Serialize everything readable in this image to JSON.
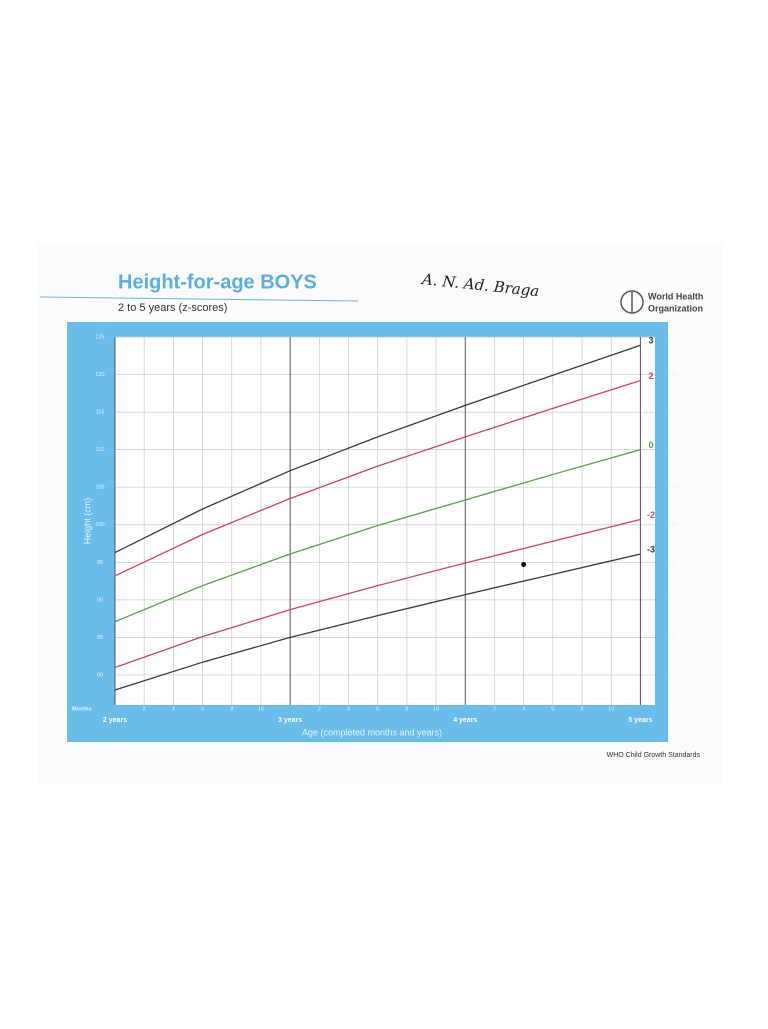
{
  "chart_data": {
    "type": "line",
    "title": "Height-for-age BOYS",
    "subtitle": "2 to 5 years (z-scores)",
    "annotation": "A. N. Ad. Braga",
    "organization": [
      "World Health",
      "Organization"
    ],
    "source": "WHO Child Growth Standards",
    "x_label": "Age (completed months and years)",
    "x_unit_label": "Months",
    "y_label": "Height (cm)",
    "x": [
      24,
      30,
      36,
      42,
      48,
      54,
      60
    ],
    "series": [
      {
        "name": "3",
        "color": "#3a3a3a",
        "values": [
          96.3,
          102.1,
          107.2,
          111.7,
          115.9,
          119.9,
          123.9
        ]
      },
      {
        "name": "2",
        "color": "#c8436a",
        "values": [
          93.2,
          98.7,
          103.5,
          107.8,
          111.7,
          115.5,
          119.2
        ]
      },
      {
        "name": "0",
        "color": "#5a9e4a",
        "values": [
          87.1,
          91.9,
          96.1,
          99.9,
          103.3,
          106.7,
          110.0
        ]
      },
      {
        "name": "-2",
        "color": "#c8436a",
        "values": [
          81.0,
          85.1,
          88.7,
          91.9,
          94.9,
          97.8,
          100.7
        ]
      },
      {
        "name": "-3",
        "color": "#3a3a3a",
        "values": [
          78.0,
          81.7,
          85.0,
          87.9,
          90.7,
          93.4,
          96.1
        ]
      }
    ],
    "points": [
      {
        "x": 52,
        "y": 94.7,
        "color": "#111111"
      }
    ],
    "xlim": [
      24,
      61
    ],
    "ylim": [
      76,
      125
    ],
    "xticks": [
      {
        "value": 24,
        "label": "2 years"
      },
      {
        "value": 26,
        "label": "2"
      },
      {
        "value": 28,
        "label": "4"
      },
      {
        "value": 30,
        "label": "6"
      },
      {
        "value": 32,
        "label": "8"
      },
      {
        "value": 34,
        "label": "10"
      },
      {
        "value": 36,
        "label": "3 years"
      },
      {
        "value": 38,
        "label": "2"
      },
      {
        "value": 40,
        "label": "4"
      },
      {
        "value": 42,
        "label": "6"
      },
      {
        "value": 44,
        "label": "8"
      },
      {
        "value": 46,
        "label": "10"
      },
      {
        "value": 48,
        "label": "4 years"
      },
      {
        "value": 50,
        "label": "2"
      },
      {
        "value": 52,
        "label": "4"
      },
      {
        "value": 54,
        "label": "6"
      },
      {
        "value": 56,
        "label": "8"
      },
      {
        "value": 58,
        "label": "10"
      },
      {
        "value": 60,
        "label": "5 years"
      }
    ],
    "yticks": [
      80,
      85,
      90,
      95,
      100,
      105,
      110,
      115,
      120,
      125
    ],
    "grid": true
  }
}
